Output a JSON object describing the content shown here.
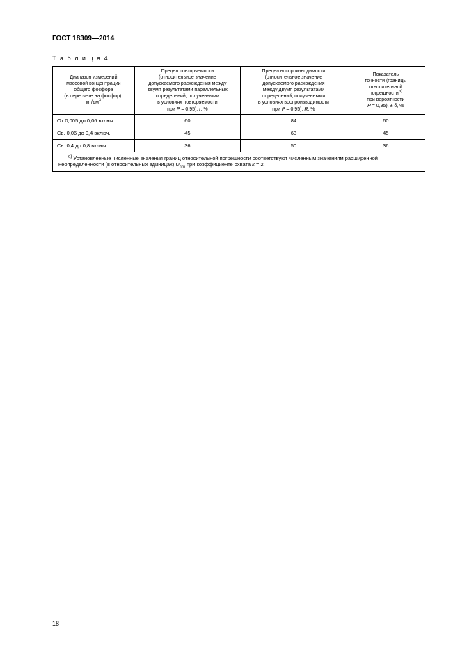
{
  "header": {
    "standard_title": "ГОСТ 18309—2014",
    "table_label": "Т а б л и ц а  4"
  },
  "table": {
    "columns": {
      "col1": {
        "lines": [
          "Диапазон измерений",
          "массовой концентрации",
          "общего фосфора",
          "(в пересчете на фосфор),",
          "мг/дм"
        ],
        "unit_sup": "3"
      },
      "col2": {
        "lines": [
          "Предел повторяемости",
          "(относительное значение",
          "допускаемого расхождения между",
          "двумя результатами параллельных",
          "определений, полученными",
          "в условиях повторяемости"
        ],
        "last_prefix": "при ",
        "P_text": "P",
        "P_val": " = 0,95), ",
        "sym": "r",
        "tail": ", %"
      },
      "col3": {
        "lines": [
          "Предел воспроизводимости",
          "(относительное значение",
          "допускаемого расхождения",
          "между двумя результатами",
          "определений, полученными",
          "в условиях воспроизводимости"
        ],
        "last_prefix": "при ",
        "P_text": "P",
        "P_val": " = 0,95), ",
        "sym": "R",
        "tail": ", %"
      },
      "col4": {
        "lines": [
          "Показатель",
          "точности (границы",
          "относительной",
          "погрешности"
        ],
        "sup_a": "а)",
        "line5": "при вероятности",
        "last_P": "P",
        "last_Peq": " = 0,95), ± δ, %"
      }
    },
    "rows": [
      {
        "range": "От 0,005 до 0,06 включ.",
        "r": "60",
        "R": "84",
        "d": "60"
      },
      {
        "range": "Св. 0,06 до 0,4 включ.",
        "r": "45",
        "R": "63",
        "d": "45"
      },
      {
        "range": "Св. 0,4 до 0,8 включ.",
        "r": "36",
        "R": "50",
        "d": "36"
      }
    ],
    "footnote": {
      "sup": "а)",
      "text1": " Установленные численные значения границ относительной погрешности соответствуют численным значениям расширенной неопределенности (в относительных единицах) ",
      "U": "U",
      "Usub": "отн",
      "text2": " при коэффициенте охвата ",
      "k": "k",
      "keq": " = 2."
    }
  },
  "page_number": "18"
}
